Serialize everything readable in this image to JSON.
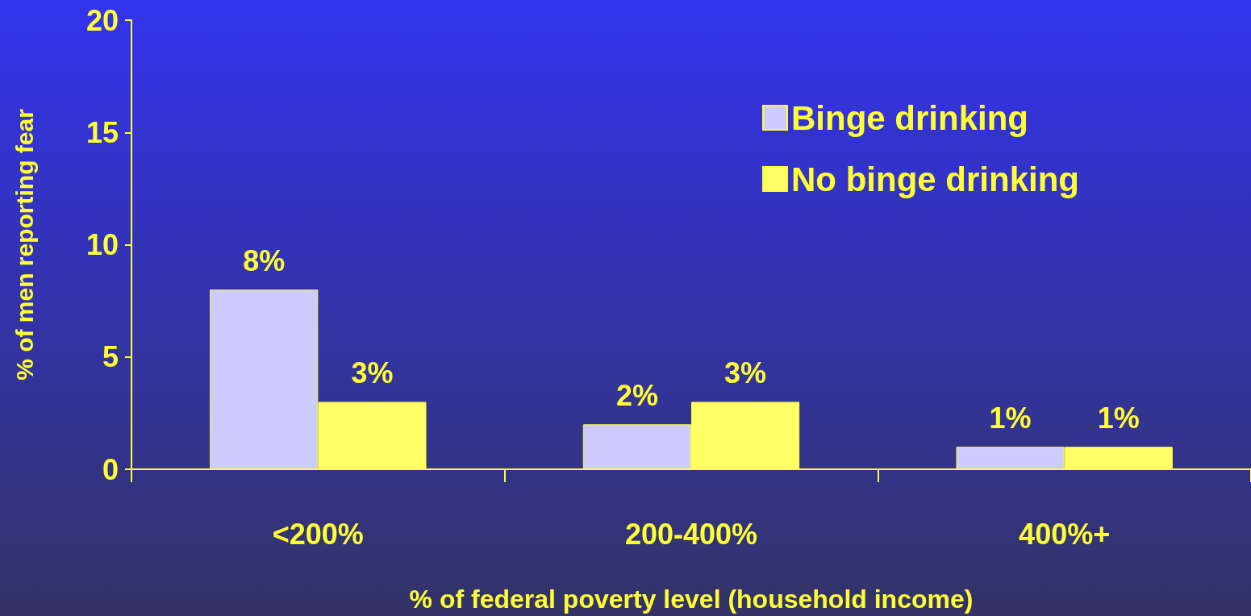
{
  "chart_data": {
    "type": "bar",
    "xlabel": "% of federal poverty level (household income)",
    "ylabel": "% of men reporting fear",
    "categories": [
      "<200%",
      "200-400%",
      "400%+"
    ],
    "series": [
      {
        "name": "Binge drinking",
        "color": "#ccccff",
        "values": [
          8,
          2,
          1
        ],
        "value_labels": [
          "8%",
          "2%",
          "1%"
        ]
      },
      {
        "name": "No binge drinking",
        "color": "#ffff66",
        "values": [
          3,
          3,
          1
        ],
        "value_labels": [
          "3%",
          "3%",
          "1%"
        ]
      }
    ],
    "ylim": [
      0,
      20
    ],
    "yticks": [
      0,
      5,
      10,
      15,
      20
    ],
    "grid": false,
    "legend": "top right"
  }
}
